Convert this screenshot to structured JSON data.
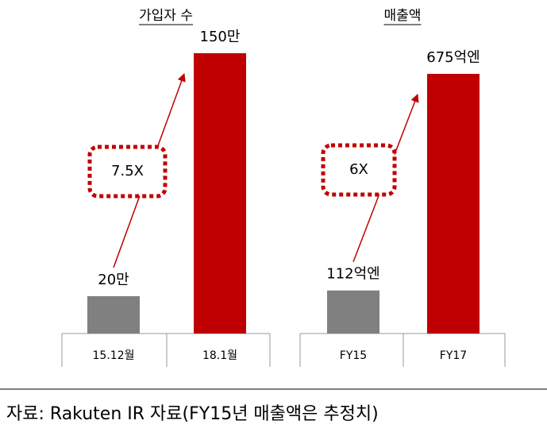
{
  "chart_data": [
    {
      "type": "bar",
      "title": "가입자 수",
      "categories": [
        "15.12월",
        "18.1월"
      ],
      "values": [
        20,
        150
      ],
      "value_labels": [
        "20만",
        "150만"
      ],
      "colors": [
        "#808080",
        "#c00000"
      ],
      "annotation": "7.5X"
    },
    {
      "type": "bar",
      "title": "매출액",
      "categories": [
        "FY15",
        "FY17"
      ],
      "values": [
        112,
        675
      ],
      "value_labels": [
        "112억엔",
        "675억엔"
      ],
      "colors": [
        "#808080",
        "#c00000"
      ],
      "annotation": "6X"
    }
  ],
  "source": "자료: Rakuten IR 자료(FY15년 매출액은 추정치)"
}
